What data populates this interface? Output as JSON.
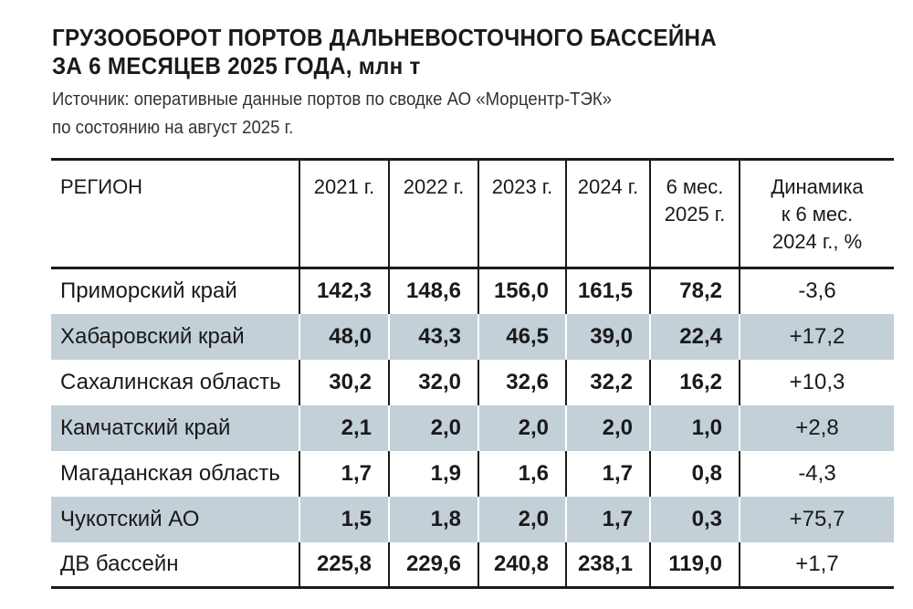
{
  "title": {
    "line1": "ГРУЗООБОРОТ ПОРТОВ ДАЛЬНЕВОСТОЧНОГО БАССЕЙНА",
    "line2": "ЗА 6 МЕСЯЦЕВ 2025 ГОДА, млн т"
  },
  "subtitle": {
    "line1": "Источник: оперативные данные портов по сводке АО «Морцентр-ТЭК»",
    "line2": "по состоянию на август 2025 г."
  },
  "table": {
    "headers": {
      "region": "РЕГИОН",
      "y2021": "2021 г.",
      "y2022": "2022 г.",
      "y2023": "2023 г.",
      "y2024": "2024 г.",
      "h2025_l1": "6 мес.",
      "h2025_l2": "2025 г.",
      "dyn_l1": "Динамика",
      "dyn_l2": "к 6 мес.",
      "dyn_l3": "2024 г., %"
    },
    "rows": [
      {
        "region": "Приморский край",
        "y2021": "142,3",
        "y2022": "148,6",
        "y2023": "156,0",
        "y2024": "161,5",
        "h2025": "78,2",
        "dyn": "-3,6"
      },
      {
        "region": "Хабаровский край",
        "y2021": "48,0",
        "y2022": "43,3",
        "y2023": "46,5",
        "y2024": "39,0",
        "h2025": "22,4",
        "dyn": "+17,2"
      },
      {
        "region": "Сахалинская область",
        "y2021": "30,2",
        "y2022": "32,0",
        "y2023": "32,6",
        "y2024": "32,2",
        "h2025": "16,2",
        "dyn": "+10,3"
      },
      {
        "region": "Камчатский край",
        "y2021": "2,1",
        "y2022": "2,0",
        "y2023": "2,0",
        "y2024": "2,0",
        "h2025": "1,0",
        "dyn": "+2,8"
      },
      {
        "region": "Магаданская область",
        "y2021": "1,7",
        "y2022": "1,9",
        "y2023": "1,6",
        "y2024": "1,7",
        "h2025": "0,8",
        "dyn": "-4,3"
      },
      {
        "region": "Чукотский АО",
        "y2021": "1,5",
        "y2022": "1,8",
        "y2023": "2,0",
        "y2024": "1,7",
        "h2025": "0,3",
        "dyn": "+75,7"
      },
      {
        "region": "ДВ бассейн",
        "y2021": "225,8",
        "y2022": "229,6",
        "y2023": "240,8",
        "y2024": "238,1",
        "h2025": "119,0",
        "dyn": "+1,7"
      }
    ],
    "shade_color": "#c3d0d8"
  }
}
